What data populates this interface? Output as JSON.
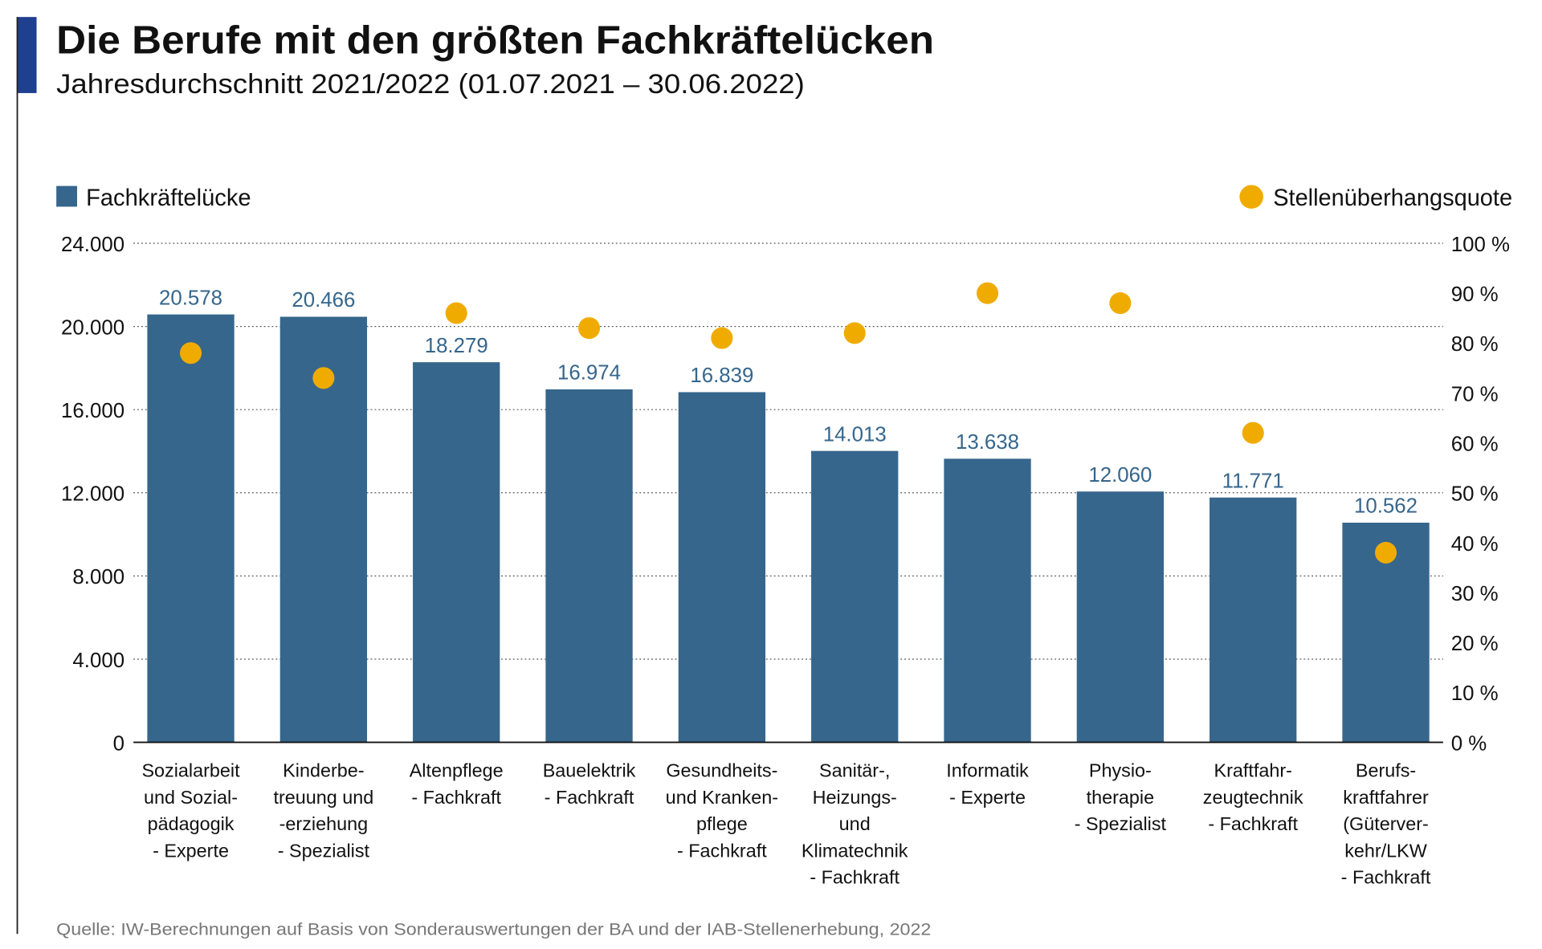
{
  "title": "Die Berufe mit den größten Fachkräftelücken",
  "subtitle": "Jahresdurchschnitt 2021/2022 (01.07.2021 – 30.06.2022)",
  "source": "Quelle: IW-Berechnungen auf Basis von Sonderauswertungen der BA und der IAB-Stellenerhebung, 2022",
  "colors": {
    "bar": "#36668c",
    "dot": "#f0ab00",
    "accent": "#1f3f8f",
    "text": "#111111",
    "source": "#777777"
  },
  "chart_data": {
    "type": "bar",
    "title": "Die Berufe mit den größten Fachkräftelücken",
    "categories": [
      [
        "Sozialarbeit",
        "und Sozial-",
        "pädagogik",
        "- Experte"
      ],
      [
        "Kinderbe-",
        "treuung und",
        "-erziehung",
        "- Spezialist"
      ],
      [
        "Altenpflege",
        "- Fachkraft"
      ],
      [
        "Bauelektrik",
        "- Fachkraft"
      ],
      [
        "Gesundheits-",
        "und Kranken-",
        "pflege",
        "- Fachkraft"
      ],
      [
        "Sanitär-,",
        "Heizungs-",
        "und",
        "Klimatechnik",
        "- Fachkraft"
      ],
      [
        "Informatik",
        "- Experte"
      ],
      [
        "Physio-",
        "therapie",
        "- Spezialist"
      ],
      [
        "Kraftfahr-",
        "zeugtechnik",
        "- Fachkraft"
      ],
      [
        "Berufs-",
        "kraftfahrer",
        "(Güterver-",
        "kehr/LKW",
        "- Fachkraft"
      ]
    ],
    "series": [
      {
        "name": "Fachkräftelücke",
        "type": "bar",
        "axis": "left",
        "values": [
          20578,
          20466,
          18279,
          16974,
          16839,
          14013,
          13638,
          12060,
          11771,
          10562
        ],
        "labels": [
          "20.578",
          "20.466",
          "18.279",
          "16.974",
          "16.839",
          "14.013",
          "13.638",
          "12.060",
          "11.771",
          "10.562"
        ]
      },
      {
        "name": "Stellenüberhangsquote",
        "type": "scatter",
        "axis": "right",
        "values": [
          78,
          73,
          86,
          83,
          81,
          82,
          90,
          88,
          62,
          38
        ]
      }
    ],
    "y_left": {
      "lim": [
        0,
        24000
      ],
      "ticks": [
        "0",
        "4.000",
        "8.000",
        "12.000",
        "16.000",
        "20.000",
        "24.000"
      ]
    },
    "y_right": {
      "lim": [
        0,
        100
      ],
      "unit": "%",
      "ticks": [
        "0 %",
        "10 %",
        "20 %",
        "30 %",
        "40 %",
        "50 %",
        "60 %",
        "70 %",
        "80 %",
        "90 %",
        "100 %"
      ]
    },
    "grid": "horizontal dotted",
    "legend": {
      "left": "Fachkräftelücke",
      "right": "Stellenüberhangsquote",
      "placement": "top"
    }
  }
}
